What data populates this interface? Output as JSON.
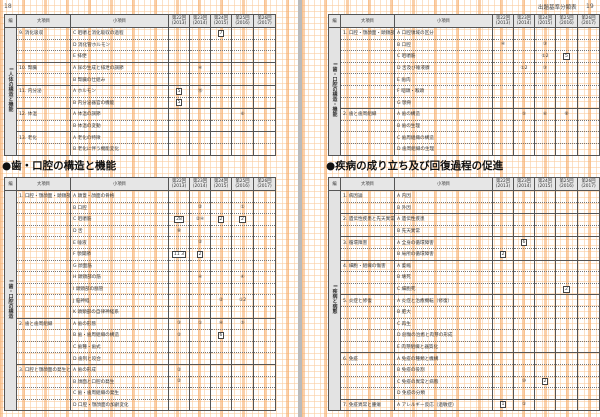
{
  "left_page": {
    "page_number": "18",
    "columns": [
      "編",
      "大項目",
      "小項目",
      "第22回\n(2013)",
      "第23回\n(2014)",
      "第24回\n(2015)",
      "第25回\n(2016)",
      "第26回\n(2017)"
    ],
    "top_table": {
      "hen": "I 人体の構造と機能",
      "rows": [
        {
          "major": "9. 消化吸収",
          "minor": "C 咀嚼と消化吸収の過程",
          "marks": [
            "",
            "",
            "7",
            "",
            ""
          ]
        },
        {
          "major": "",
          "minor": "D 消化管ホルモン",
          "marks": [
            "",
            "",
            "",
            "",
            ""
          ]
        },
        {
          "major": "",
          "minor": "E 排便",
          "marks": [
            "",
            "",
            "",
            "",
            ""
          ]
        },
        {
          "major": "10. 腎臓",
          "minor": "A 尿の生成と排泄の調節",
          "marks": [
            "",
            "④",
            "",
            "",
            ""
          ]
        },
        {
          "major": "",
          "minor": "B 腎臓の仕組み",
          "marks": [
            "",
            "",
            "",
            "",
            ""
          ]
        },
        {
          "major": "11. 内分泌",
          "minor": "A ホルモン",
          "marks": [
            "5",
            "⑮",
            "",
            "",
            ""
          ]
        },
        {
          "major": "",
          "minor": "B 内分泌器官の機能",
          "marks": [
            "5",
            "",
            "",
            "",
            ""
          ]
        },
        {
          "major": "12. 体温",
          "minor": "A 体温の調節",
          "marks": [
            "",
            "",
            "",
            "⑥",
            ""
          ]
        },
        {
          "major": "",
          "minor": "B 体温の変動",
          "marks": [
            "",
            "",
            "",
            "",
            ""
          ]
        },
        {
          "major": "13. 老化",
          "minor": "A 老化の特徴",
          "marks": [
            "",
            "",
            "",
            "",
            ""
          ]
        },
        {
          "major": "",
          "minor": "B 老化に伴う機能変化",
          "marks": [
            "",
            "",
            "",
            "",
            ""
          ]
        }
      ]
    },
    "heading": "●歯・口腔の構造と機能",
    "bottom_table": {
      "hen": "I 歯・口腔の構造",
      "rows": [
        {
          "major": "1. 口腔・顎顔面・頭頸部",
          "minor": "A 頭蓋・顔面の骨格",
          "marks": [
            "",
            "",
            "",
            "",
            ""
          ]
        },
        {
          "major": "",
          "minor": "B 口腔",
          "marks": [
            "",
            "②",
            "",
            "①",
            ""
          ]
        },
        {
          "major": "",
          "minor": "C 咀嚼筋",
          "marks": [
            "28",
            "②④",
            "2",
            "2",
            ""
          ]
        },
        {
          "major": "",
          "minor": "D 舌",
          "marks": [
            "⑧",
            "",
            "",
            "",
            ""
          ]
        },
        {
          "major": "",
          "minor": "E 唾液",
          "marks": [
            "",
            "②",
            "",
            "",
            ""
          ]
        },
        {
          "major": "",
          "minor": "F 顎関節",
          "marks": [
            "11 3",
            "2",
            "",
            "",
            ""
          ]
        },
        {
          "major": "",
          "minor": "G 顔面筋",
          "marks": [
            "",
            "",
            "",
            "",
            ""
          ]
        },
        {
          "major": "",
          "minor": "H 頭頸部の筋",
          "marks": [
            "",
            "④",
            "",
            "④",
            ""
          ]
        },
        {
          "major": "",
          "minor": "I 頭頸部の脈管",
          "marks": [
            "",
            "",
            "",
            "",
            ""
          ]
        },
        {
          "major": "",
          "minor": "J 脳神経",
          "marks": [
            "",
            "",
            "②",
            "①2",
            ""
          ]
        },
        {
          "major": "",
          "minor": "K 頭頸部の自律神経系",
          "marks": [
            "",
            "",
            "",
            "",
            ""
          ]
        },
        {
          "major": "2. 歯と歯周組織",
          "minor": "A 歯の形態",
          "marks": [
            "③",
            "①",
            "④",
            "⑤",
            ""
          ]
        },
        {
          "major": "",
          "minor": "B 歯・歯周組織の構造",
          "marks": [
            "②",
            "",
            "6",
            "",
            ""
          ]
        },
        {
          "major": "",
          "minor": "C 歯種・歯式",
          "marks": [
            "",
            "",
            "",
            "",
            ""
          ]
        },
        {
          "major": "",
          "minor": "D 歯列と咬合",
          "marks": [
            "",
            "",
            "",
            "",
            ""
          ]
        },
        {
          "major": "3. 口腔と顎顔面の発生と加齢",
          "minor": "A 歯の形成",
          "marks": [
            "②",
            "",
            "",
            "",
            ""
          ]
        },
        {
          "major": "",
          "minor": "B 顔面と口腔の発生",
          "marks": [
            "②",
            "",
            "",
            "",
            ""
          ]
        },
        {
          "major": "",
          "minor": "C 歯・歯周組織の発生",
          "marks": [
            "",
            "",
            "",
            "",
            ""
          ]
        },
        {
          "major": "",
          "minor": "D 口腔・顎顔面の加齢変化",
          "marks": [
            "",
            "",
            "",
            "",
            ""
          ]
        }
      ]
    }
  },
  "right_page": {
    "running_head": "出題基準分類表",
    "page_number": "19",
    "top_table": {
      "hen": "I 歯・口腔の構造・機能",
      "rows": [
        {
          "major": "1. 口腔・顎顔面・頭頸部",
          "minor": "A 口腔領域の区分",
          "marks": [
            "",
            "",
            "",
            "",
            ""
          ]
        },
        {
          "major": "",
          "minor": "B 口腔",
          "marks": [
            "④",
            "",
            "③",
            "",
            ""
          ]
        },
        {
          "major": "",
          "minor": "C 咀嚼筋",
          "marks": [
            "",
            "",
            "①2",
            "5",
            ""
          ]
        },
        {
          "major": "",
          "minor": "D 舌及び唾液腺",
          "marks": [
            "",
            "①2",
            "③",
            "",
            ""
          ]
        },
        {
          "major": "",
          "minor": "E 歯肉",
          "marks": [
            "",
            "",
            "",
            "",
            ""
          ]
        },
        {
          "major": "",
          "minor": "F 咽頭・喉頭",
          "marks": [
            "",
            "",
            "",
            "",
            ""
          ]
        },
        {
          "major": "",
          "minor": "G 顎骨",
          "marks": [
            "",
            "",
            "",
            "",
            ""
          ]
        },
        {
          "major": "2. 歯と歯周組織",
          "minor": "A 歯の構造",
          "marks": [
            "",
            "⑤",
            "⑥",
            "⑧",
            ""
          ]
        },
        {
          "major": "",
          "minor": "B 歯の生理",
          "marks": [
            "",
            "",
            "",
            "",
            ""
          ]
        },
        {
          "major": "",
          "minor": "C 歯周組織の構造",
          "marks": [
            "",
            "",
            "",
            "",
            ""
          ]
        },
        {
          "major": "",
          "minor": "D 歯周組織の生理",
          "marks": [
            "",
            "",
            "",
            "",
            ""
          ]
        }
      ]
    },
    "heading": "●疾病の成り立ち及び回復過程の促進",
    "bottom_table": {
      "hen": "I 疾病と病態",
      "rows": [
        {
          "major": "1. 病因論",
          "minor": "A 内因",
          "marks": [
            "",
            "",
            "",
            "",
            ""
          ]
        },
        {
          "major": "",
          "minor": "B 外因",
          "marks": [
            "",
            "",
            "",
            "",
            ""
          ]
        },
        {
          "major": "2. 遺伝性疾患と先天異常",
          "minor": "A 遺伝性疾患",
          "marks": [
            "",
            "",
            "",
            "",
            ""
          ]
        },
        {
          "major": "",
          "minor": "B 先天異常",
          "marks": [
            "",
            "",
            "",
            "",
            ""
          ]
        },
        {
          "major": "3. 循環障害",
          "minor": "A 全身の循環障害",
          "marks": [
            "",
            "6",
            "",
            "",
            ""
          ]
        },
        {
          "major": "",
          "minor": "B 局所の循環障害",
          "marks": [
            "2",
            "",
            "",
            "",
            ""
          ]
        },
        {
          "major": "4. 細胞・組織の傷害",
          "minor": "A 萎縮",
          "marks": [
            "",
            "",
            "",
            "",
            ""
          ]
        },
        {
          "major": "",
          "minor": "B 壊死",
          "marks": [
            "",
            "",
            "",
            "",
            ""
          ]
        },
        {
          "major": "",
          "minor": "C 細胞死",
          "marks": [
            "",
            "",
            "",
            "2",
            ""
          ]
        },
        {
          "major": "5. 炎症と修復",
          "minor": "A 炎症と治癒機転（修復）",
          "marks": [
            "",
            "",
            "",
            "",
            ""
          ]
        },
        {
          "major": "",
          "minor": "B 肥大",
          "marks": [
            "",
            "",
            "",
            "",
            ""
          ]
        },
        {
          "major": "",
          "minor": "C 再生",
          "marks": [
            "",
            "",
            "",
            "",
            ""
          ]
        },
        {
          "major": "",
          "minor": "D 創傷の治癒と肉芽の形成",
          "marks": [
            "",
            "",
            "",
            "",
            ""
          ]
        },
        {
          "major": "",
          "minor": "E 肉芽組織と器質化",
          "marks": [
            "",
            "",
            "",
            "",
            ""
          ]
        },
        {
          "major": "6. 免疫",
          "minor": "A 免疫の種類と機構",
          "marks": [
            "",
            "",
            "",
            "",
            ""
          ]
        },
        {
          "major": "",
          "minor": "B 免疫の役割",
          "marks": [
            "",
            "",
            "",
            "",
            ""
          ]
        },
        {
          "major": "",
          "minor": "C 免疫の異常と病態",
          "marks": [
            "",
            "⑩",
            "2",
            "",
            ""
          ]
        },
        {
          "major": "",
          "minor": "D 免疫の分類",
          "marks": [
            "",
            "",
            "",
            "",
            ""
          ]
        },
        {
          "major": "7. 免疫異常と腫瘍",
          "minor": "A アレルギー反応（過敏症）",
          "marks": [
            "1",
            "①",
            "",
            "",
            ""
          ]
        }
      ]
    }
  },
  "colors": {
    "grid_orange": "#f6aa64",
    "header_gray": "#e6e6e6"
  }
}
